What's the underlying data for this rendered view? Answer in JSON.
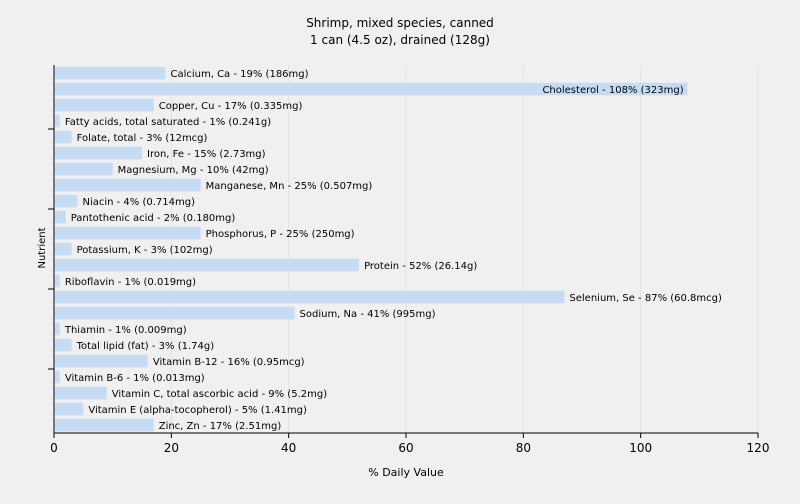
{
  "chart_data": {
    "type": "bar",
    "orientation": "horizontal",
    "title": "Shrimp, mixed species, canned",
    "subtitle": "1 can (4.5 oz), drained (128g)",
    "xlabel": "% Daily Value",
    "ylabel": "Nutrient",
    "xlim": [
      0,
      120
    ],
    "xticks": [
      0,
      20,
      40,
      60,
      80,
      100,
      120
    ],
    "grid": true,
    "legend": "none",
    "bar_color": "#c6dcf5",
    "categories": [
      "Calcium, Ca",
      "Cholesterol",
      "Copper, Cu",
      "Fatty acids, total saturated",
      "Folate, total",
      "Iron, Fe",
      "Magnesium, Mg",
      "Manganese, Mn",
      "Niacin",
      "Pantothenic acid",
      "Phosphorus, P",
      "Potassium, K",
      "Protein",
      "Riboflavin",
      "Selenium, Se",
      "Sodium, Na",
      "Thiamin",
      "Total lipid (fat)",
      "Vitamin B-12",
      "Vitamin B-6",
      "Vitamin C, total ascorbic acid",
      "Vitamin E (alpha-tocopherol)",
      "Zinc, Zn"
    ],
    "values": [
      19,
      108,
      17,
      1,
      3,
      15,
      10,
      25,
      4,
      2,
      25,
      3,
      52,
      1,
      87,
      41,
      1,
      3,
      16,
      1,
      9,
      5,
      17
    ],
    "labels": [
      "Calcium, Ca - 19% (186mg)",
      "Cholesterol - 108% (323mg)",
      "Copper, Cu - 17% (0.335mg)",
      "Fatty acids, total saturated - 1% (0.241g)",
      "Folate, total - 3% (12mcg)",
      "Iron, Fe - 15% (2.73mg)",
      "Magnesium, Mg - 10% (42mg)",
      "Manganese, Mn - 25% (0.507mg)",
      "Niacin - 4% (0.714mg)",
      "Pantothenic acid - 2% (0.180mg)",
      "Phosphorus, P - 25% (250mg)",
      "Potassium, K - 3% (102mg)",
      "Protein - 52% (26.14g)",
      "Riboflavin - 1% (0.019mg)",
      "Selenium, Se - 87% (60.8mcg)",
      "Sodium, Na - 41% (995mg)",
      "Thiamin - 1% (0.009mg)",
      "Total lipid (fat) - 3% (1.74g)",
      "Vitamin B-12 - 16% (0.95mcg)",
      "Vitamin B-6 - 1% (0.013mg)",
      "Vitamin C, total ascorbic acid - 9% (5.2mg)",
      "Vitamin E (alpha-tocopherol) - 5% (1.41mg)",
      "Zinc, Zn - 17% (2.51mg)"
    ]
  }
}
